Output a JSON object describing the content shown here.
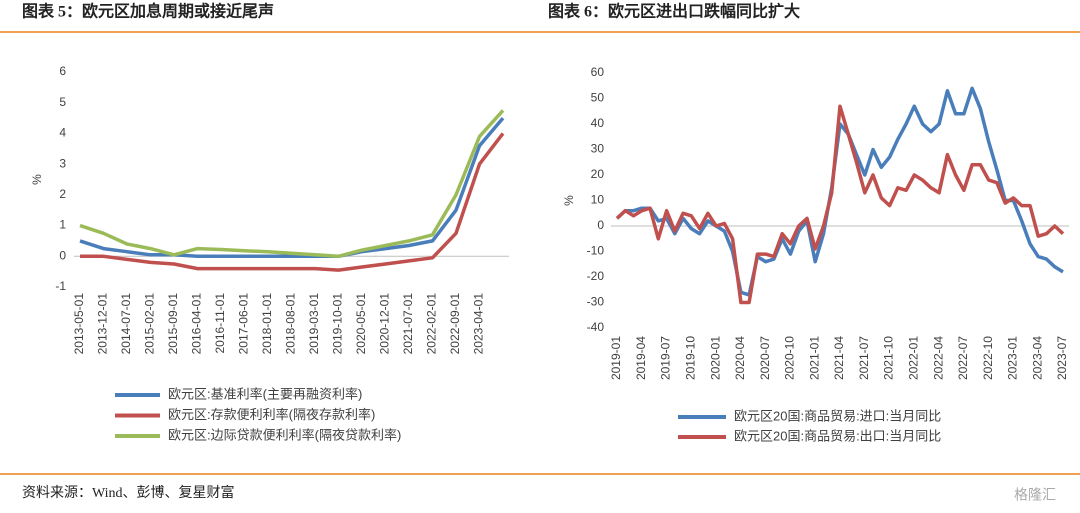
{
  "chart_data": [
    {
      "type": "line",
      "title": "图表 5：欧元区加息周期或接近尾声",
      "ylabel": "%",
      "categories": [
        "2013-05-01",
        "2013-12-01",
        "2014-07-01",
        "2015-02-01",
        "2015-09-01",
        "2016-04-01",
        "2016-11-01",
        "2017-06-01",
        "2018-01-01",
        "2018-08-01",
        "2019-03-01",
        "2019-10-01",
        "2020-05-01",
        "2020-12-01",
        "2021-07-01",
        "2022-02-01",
        "2022-09-01",
        "2023-04-01",
        null
      ],
      "series": [
        {
          "name": "欧元区:基准利率(主要再融资利率)",
          "color": "#4a7ebb",
          "values": [
            0.5,
            0.25,
            0.15,
            0.05,
            0.05,
            0,
            0,
            0,
            0,
            0,
            0,
            0,
            0.15,
            0.25,
            0.35,
            0.5,
            1.5,
            3.6,
            4.5
          ]
        },
        {
          "name": "欧元区:存款便利利率(隔夜存款利率)",
          "color": "#c0504d",
          "values": [
            0,
            0,
            -0.1,
            -0.2,
            -0.25,
            -0.4,
            -0.4,
            -0.4,
            -0.4,
            -0.4,
            -0.4,
            -0.45,
            -0.35,
            -0.25,
            -0.15,
            -0.05,
            0.75,
            3.0,
            4.0
          ]
        },
        {
          "name": "欧元区:边际贷款便利利率(隔夜贷款利率)",
          "color": "#9bbb59",
          "values": [
            1.0,
            0.75,
            0.4,
            0.25,
            0.05,
            0.25,
            0.22,
            0.18,
            0.15,
            0.1,
            0.05,
            0,
            0.2,
            0.35,
            0.5,
            0.7,
            2.0,
            3.9,
            4.75
          ]
        }
      ],
      "ylim": [
        -1,
        6
      ],
      "yticks": [
        -1,
        0,
        1,
        2,
        3,
        4,
        5,
        6
      ]
    },
    {
      "type": "line",
      "title": "图表 6：欧元区进出口跌幅同比扩大",
      "ylabel": "%",
      "categories": [
        "2019-01",
        null,
        null,
        "2019-04",
        null,
        null,
        "2019-07",
        null,
        null,
        "2019-10",
        null,
        null,
        "2020-01",
        null,
        null,
        "2020-04",
        null,
        null,
        "2020-07",
        null,
        null,
        "2020-10",
        null,
        null,
        "2021-01",
        null,
        null,
        "2021-04",
        null,
        null,
        "2021-07",
        null,
        null,
        "2021-10",
        null,
        null,
        "2022-01",
        null,
        null,
        "2022-04",
        null,
        null,
        "2022-07",
        null,
        null,
        "2022-10",
        null,
        null,
        "2023-01",
        null,
        null,
        "2023-04",
        null,
        null,
        "2023-07"
      ],
      "series": [
        {
          "name": "欧元区20国:商品贸易:进口:当月同比",
          "color": "#4a7ebb",
          "values": [
            3,
            6,
            6,
            7,
            7,
            2,
            3,
            -3,
            3,
            -1,
            -3,
            2,
            0,
            -2,
            -10,
            -26,
            -27,
            -12,
            -14,
            -13,
            -5,
            -11,
            -2,
            2,
            -14,
            -3,
            15,
            40,
            36,
            28,
            20,
            30,
            23,
            27,
            34,
            40,
            47,
            40,
            37,
            40,
            53,
            44,
            44,
            54,
            46,
            33,
            22,
            10,
            10,
            2,
            -7,
            -12,
            -13,
            -16,
            -18
          ]
        },
        {
          "name": "欧元区20国:商品贸易:出口:当月同比",
          "color": "#c0504d",
          "values": [
            3,
            6,
            4,
            6,
            7,
            -5,
            6,
            -2,
            5,
            4,
            -1,
            5,
            0,
            1,
            -5,
            -30,
            -30,
            -11,
            -11,
            -12,
            -3,
            -7,
            0,
            3,
            -9,
            0,
            13,
            47,
            36,
            25,
            13,
            20,
            11,
            8,
            15,
            14,
            20,
            18,
            15,
            13,
            28,
            20,
            14,
            24,
            24,
            18,
            17,
            9,
            11,
            8,
            8,
            -4,
            -3,
            0,
            -3
          ]
        }
      ],
      "ylim": [
        -40,
        60
      ],
      "yticks": [
        -40,
        -30,
        -20,
        -10,
        0,
        10,
        20,
        30,
        40,
        50,
        60
      ]
    }
  ],
  "source": "资料来源：Wind、彭博、复星财富",
  "watermark": "格隆汇"
}
